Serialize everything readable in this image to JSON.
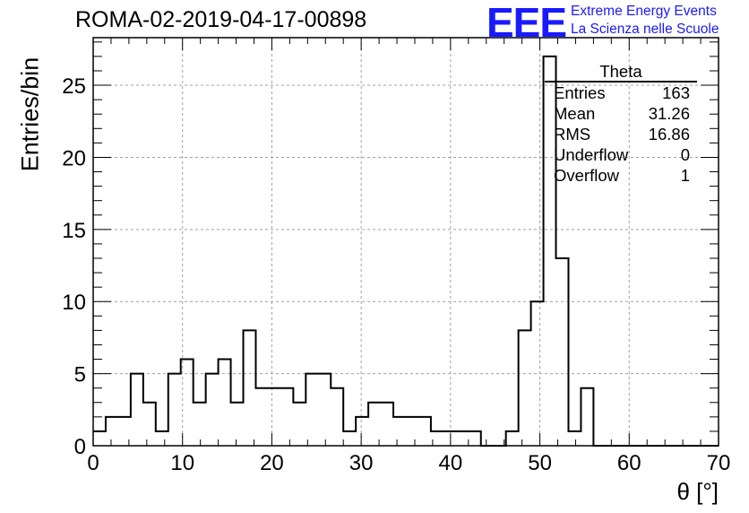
{
  "header": {
    "run_title": "ROMA-02-2019-04-17-00898",
    "logo_mark": "EEE",
    "logo_line1": "Extreme Energy Events",
    "logo_line2": "La Scienza nelle Scuole"
  },
  "colors": {
    "logo": "#1a1aff",
    "grid": "#a0a0a0",
    "histogram": "#000000"
  },
  "stats_box": {
    "title": "Theta",
    "rows": [
      {
        "label": "Entries",
        "value": "163"
      },
      {
        "label": "Mean",
        "value": "31.26"
      },
      {
        "label": "RMS",
        "value": "16.86"
      },
      {
        "label": "Underflow",
        "value": "0"
      },
      {
        "label": "Overflow",
        "value": "1"
      }
    ]
  },
  "chart_data": {
    "type": "histogram",
    "xlabel": "θ [°]",
    "ylabel": "Entries/bin",
    "xlim": [
      0,
      70
    ],
    "ylim": [
      0,
      28.3
    ],
    "x_ticks": [
      0,
      10,
      20,
      30,
      40,
      50,
      60,
      70
    ],
    "y_ticks": [
      0,
      5,
      10,
      15,
      20,
      25
    ],
    "grid": true,
    "bin_width": 1.4,
    "bin_start": 0,
    "values": [
      1,
      2,
      2,
      5,
      3,
      1,
      5,
      6,
      3,
      5,
      6,
      3,
      8,
      4,
      4,
      4,
      3,
      5,
      5,
      4,
      1,
      2,
      3,
      3,
      2,
      2,
      2,
      1,
      1,
      1,
      1,
      0,
      0,
      1,
      8,
      10,
      27,
      13,
      1,
      4,
      0,
      0,
      0,
      0,
      0,
      0,
      0,
      0,
      0,
      0
    ]
  }
}
